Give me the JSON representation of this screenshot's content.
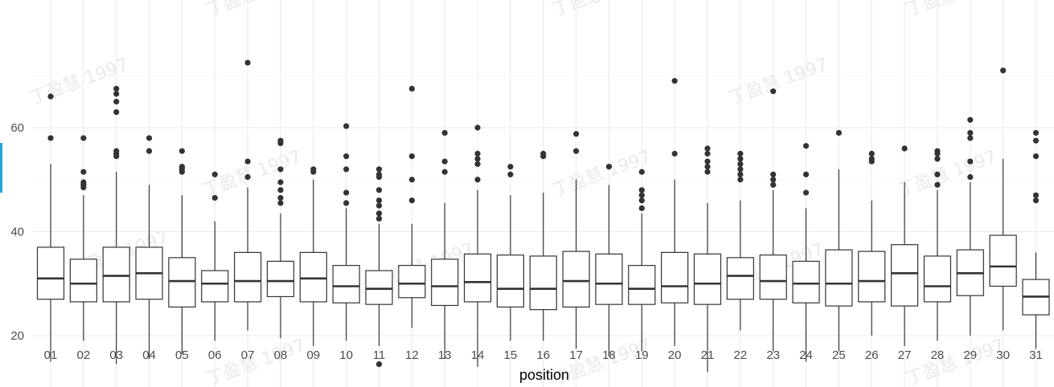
{
  "chart_data": {
    "type": "boxplot",
    "xlabel": "position",
    "ylabel": "",
    "ylim": [
      10,
      73
    ],
    "y_ticks": [
      20,
      40,
      60
    ],
    "grid": true,
    "watermark": "丁盈慧 1997",
    "colors": {
      "box_stroke": "#333333",
      "grid": "#ebebeb",
      "tick_text": "#4d4d4d",
      "ylabel_fragment": "#29a3d6"
    },
    "categories": [
      "01",
      "02",
      "03",
      "04",
      "05",
      "06",
      "07",
      "08",
      "09",
      "10",
      "11",
      "12",
      "13",
      "14",
      "15",
      "16",
      "17",
      "18",
      "19",
      "20",
      "21",
      "22",
      "23",
      "24",
      "25",
      "26",
      "27",
      "28",
      "29",
      "30",
      "31"
    ],
    "boxes": [
      {
        "x": "01",
        "min": 15,
        "q1": 27,
        "median": 31,
        "q3": 37,
        "max": 53,
        "outliers": [
          58,
          66
        ]
      },
      {
        "x": "02",
        "min": 19,
        "q1": 26.5,
        "median": 30,
        "q3": 34.7,
        "max": 47,
        "outliers": [
          48.5,
          49,
          49.5,
          51.5,
          58
        ]
      },
      {
        "x": "03",
        "min": 14.5,
        "q1": 26.5,
        "median": 31.5,
        "q3": 37,
        "max": 51.5,
        "outliers": [
          54.5,
          55,
          55.5,
          63,
          65,
          66.5,
          67.5
        ]
      },
      {
        "x": "04",
        "min": 15.5,
        "q1": 27,
        "median": 32,
        "q3": 37,
        "max": 49,
        "outliers": [
          55.5,
          58
        ]
      },
      {
        "x": "05",
        "min": 16.5,
        "q1": 25.5,
        "median": 30.5,
        "q3": 35,
        "max": 47,
        "outliers": [
          51.5,
          52,
          52.5,
          55.5
        ]
      },
      {
        "x": "06",
        "min": 19,
        "q1": 26.5,
        "median": 30,
        "q3": 32.5,
        "max": 42,
        "outliers": [
          46.5,
          51
        ]
      },
      {
        "x": "07",
        "min": 21,
        "q1": 26.5,
        "median": 30.5,
        "q3": 36,
        "max": 48.5,
        "outliers": [
          50.5,
          53.5,
          72.5
        ]
      },
      {
        "x": "08",
        "min": 19.5,
        "q1": 27.5,
        "median": 30.5,
        "q3": 34.3,
        "max": 43.5,
        "outliers": [
          45.5,
          46.5,
          48,
          49.5,
          52,
          57,
          57.5
        ]
      },
      {
        "x": "09",
        "min": 18,
        "q1": 26.5,
        "median": 31,
        "q3": 36,
        "max": 50,
        "outliers": [
          51.5,
          52
        ]
      },
      {
        "x": "10",
        "min": 19,
        "q1": 26.3,
        "median": 29.5,
        "q3": 33.5,
        "max": 44.5,
        "outliers": [
          45.5,
          47.5,
          52,
          54.5,
          60.3
        ]
      },
      {
        "x": "11",
        "min": 18,
        "q1": 26,
        "median": 29,
        "q3": 32.5,
        "max": 41.5,
        "outliers": [
          14.5,
          42.5,
          43.5,
          45,
          46,
          48,
          50.5,
          51,
          52
        ]
      },
      {
        "x": "12",
        "min": 21.5,
        "q1": 27.3,
        "median": 30,
        "q3": 33.5,
        "max": 41.5,
        "outliers": [
          46,
          50,
          54.5,
          67.5
        ]
      },
      {
        "x": "13",
        "min": 15.5,
        "q1": 25.8,
        "median": 29.5,
        "q3": 34.7,
        "max": 45.5,
        "outliers": [
          51.5,
          53.5,
          59
        ]
      },
      {
        "x": "14",
        "min": 14,
        "q1": 26.5,
        "median": 30.3,
        "q3": 35.7,
        "max": 48,
        "outliers": [
          50,
          53,
          54,
          55,
          60
        ]
      },
      {
        "x": "15",
        "min": 19,
        "q1": 25.5,
        "median": 29,
        "q3": 35.5,
        "max": 47,
        "outliers": [
          51,
          52.5
        ]
      },
      {
        "x": "16",
        "min": 19,
        "q1": 25,
        "median": 29,
        "q3": 35.3,
        "max": 47.5,
        "outliers": [
          54.5,
          55
        ]
      },
      {
        "x": "17",
        "min": 17.5,
        "q1": 25.5,
        "median": 30.5,
        "q3": 36.2,
        "max": 50,
        "outliers": [
          55.5,
          58.8
        ]
      },
      {
        "x": "18",
        "min": 16,
        "q1": 26,
        "median": 30,
        "q3": 35.7,
        "max": 49,
        "outliers": [
          52.5
        ]
      },
      {
        "x": "19",
        "min": 17,
        "q1": 26,
        "median": 29,
        "q3": 33.5,
        "max": 43.5,
        "outliers": [
          44.5,
          46,
          47,
          48,
          51.5
        ]
      },
      {
        "x": "20",
        "min": 18,
        "q1": 26.3,
        "median": 29.5,
        "q3": 36,
        "max": 50,
        "outliers": [
          55,
          69
        ]
      },
      {
        "x": "21",
        "min": 13,
        "q1": 26,
        "median": 30,
        "q3": 35.7,
        "max": 45.5,
        "outliers": [
          51.5,
          52.5,
          53.5,
          55,
          56
        ]
      },
      {
        "x": "22",
        "min": 21,
        "q1": 27,
        "median": 31.5,
        "q3": 35,
        "max": 46,
        "outliers": [
          50,
          51,
          52,
          53,
          54,
          55
        ]
      },
      {
        "x": "23",
        "min": 17,
        "q1": 27,
        "median": 30.5,
        "q3": 35.5,
        "max": 48,
        "outliers": [
          49,
          50,
          51,
          67
        ]
      },
      {
        "x": "24",
        "min": 15,
        "q1": 26.3,
        "median": 30,
        "q3": 34.3,
        "max": 44.5,
        "outliers": [
          47.5,
          51,
          56.5
        ]
      },
      {
        "x": "25",
        "min": 17,
        "q1": 25.7,
        "median": 30,
        "q3": 36.5,
        "max": 52,
        "outliers": [
          59
        ]
      },
      {
        "x": "26",
        "min": 20,
        "q1": 26.5,
        "median": 30.5,
        "q3": 36.2,
        "max": 46,
        "outliers": [
          53.5,
          54,
          55
        ]
      },
      {
        "x": "27",
        "min": 18,
        "q1": 25.7,
        "median": 32,
        "q3": 37.5,
        "max": 49.5,
        "outliers": [
          56
        ]
      },
      {
        "x": "28",
        "min": 19,
        "q1": 26.5,
        "median": 29.5,
        "q3": 35.3,
        "max": 48,
        "outliers": [
          49,
          51,
          54,
          55,
          55.5
        ]
      },
      {
        "x": "29",
        "min": 20,
        "q1": 27.7,
        "median": 32,
        "q3": 36.5,
        "max": 49.5,
        "outliers": [
          50.5,
          53.5,
          58,
          59,
          61.5
        ]
      },
      {
        "x": "30",
        "min": 21,
        "q1": 29.5,
        "median": 33.3,
        "q3": 39.3,
        "max": 54,
        "outliers": [
          71
        ]
      },
      {
        "x": "31",
        "min": 17.5,
        "q1": 24,
        "median": 27.5,
        "q3": 30.8,
        "max": 36,
        "outliers": [
          46,
          47,
          54.5,
          57.5,
          59
        ]
      }
    ]
  }
}
